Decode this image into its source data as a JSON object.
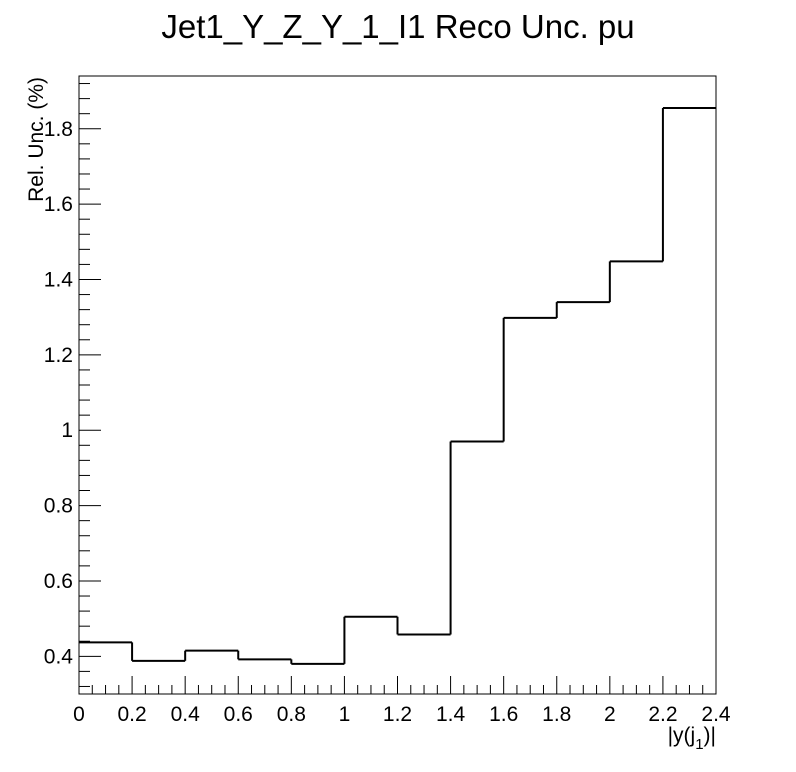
{
  "chart_data": {
    "type": "histogram",
    "title": "Jet1_Y_Z_Y_1_I1 Reco Unc. pu",
    "xlabel": "|y(j",
    "xlabel_subscript": "1",
    "xlabel_suffix": ")|",
    "ylabel": "Rel. Unc. (%)",
    "xlim": [
      0,
      2.4
    ],
    "ylim": [
      0.3,
      1.94
    ],
    "bin_edges": [
      0,
      0.2,
      0.4,
      0.6,
      0.8,
      1.0,
      1.2,
      1.4,
      1.6,
      1.8,
      2.0,
      2.2,
      2.4
    ],
    "values": [
      0.437,
      0.388,
      0.415,
      0.392,
      0.38,
      0.505,
      0.458,
      0.97,
      1.298,
      1.34,
      1.448,
      1.855
    ],
    "x_ticks": [
      0,
      0.2,
      0.4,
      0.6,
      0.8,
      1,
      1.2,
      1.4,
      1.6,
      1.8,
      2,
      2.2,
      2.4
    ],
    "x_tick_labels": [
      "0",
      "0.2",
      "0.4",
      "0.6",
      "0.8",
      "1",
      "1.2",
      "1.4",
      "1.6",
      "1.8",
      "2",
      "2.2",
      "2.4"
    ],
    "y_ticks": [
      0.4,
      0.6,
      0.8,
      1.0,
      1.2,
      1.4,
      1.6,
      1.8
    ],
    "y_tick_labels": [
      "0.4",
      "0.6",
      "0.8",
      "1",
      "1.2",
      "1.4",
      "1.6",
      "1.8"
    ],
    "grid": false,
    "line_color": "#000000"
  }
}
